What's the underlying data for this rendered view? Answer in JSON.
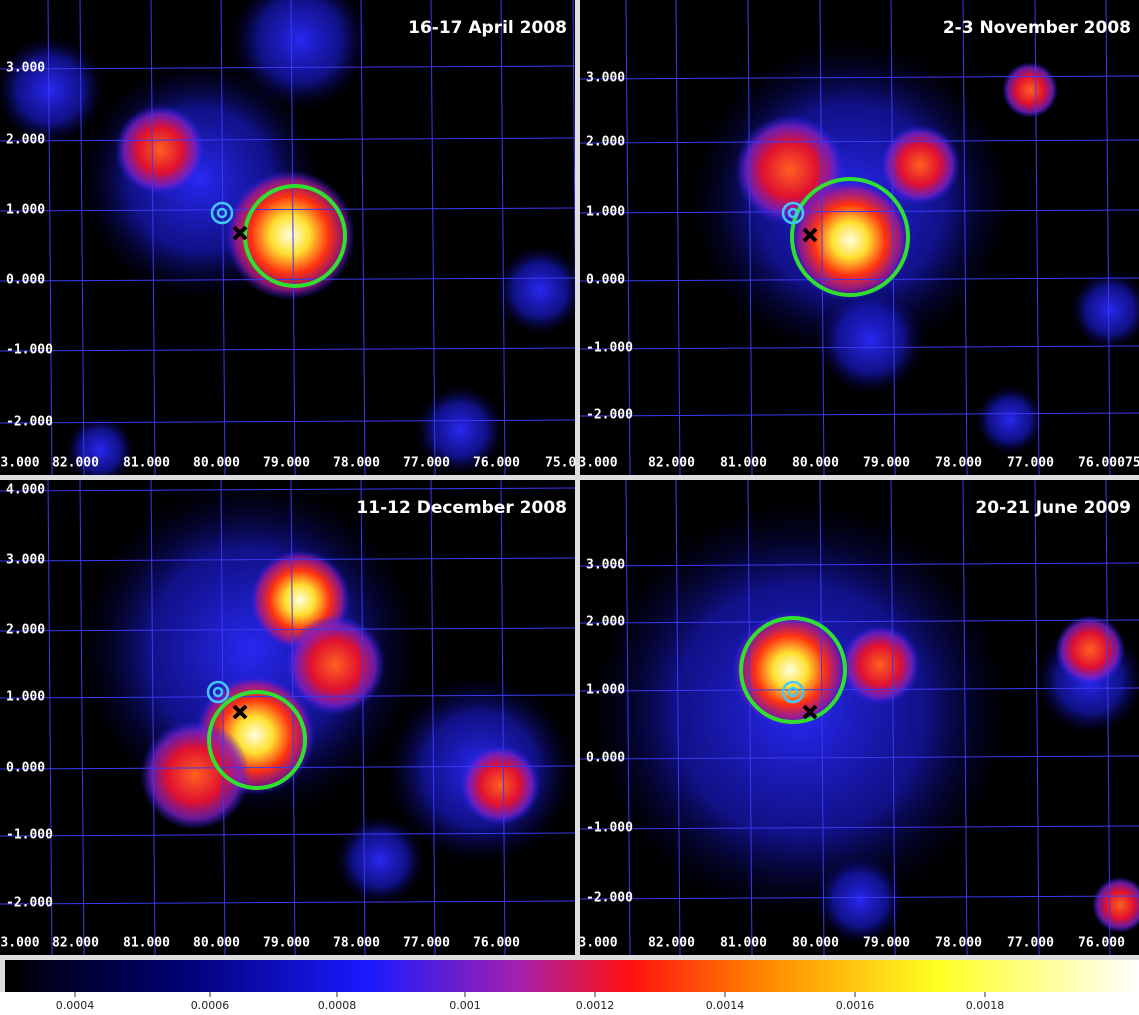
{
  "panels": [
    {
      "title": "16-17 April 2008",
      "y_labels": [
        "3.000",
        "2.000",
        "1.000",
        "0.000",
        "-1.000",
        "-2.000"
      ],
      "x_labels": [
        "3.000",
        "82.000",
        "81.000",
        "80.000",
        "79.000",
        "78.000",
        "77.000",
        "76.000",
        "75.0"
      ]
    },
    {
      "title": "2-3 November 2008",
      "y_labels": [
        "3.000",
        "2.000",
        "1.000",
        "0.000",
        "-1.000",
        "-2.000"
      ],
      "x_labels": [
        "3.000",
        "82.000",
        "81.000",
        "80.000",
        "79.000",
        "78.000",
        "77.000",
        "76.000",
        "75."
      ]
    },
    {
      "title": "11-12 December 2008",
      "y_labels": [
        "4.000",
        "3.000",
        "2.000",
        "1.000",
        "0.000",
        "-1.000",
        "-2.000"
      ],
      "x_labels": [
        "3.000",
        "82.000",
        "81.000",
        "80.000",
        "79.000",
        "78.000",
        "77.000",
        "76.000"
      ]
    },
    {
      "title": "20-21 June 2009",
      "y_labels": [
        "3.000",
        "2.000",
        "1.000",
        "0.000",
        "-1.000",
        "-2.000"
      ],
      "x_labels": [
        "3.000",
        "82.000",
        "81.000",
        "80.000",
        "79.000",
        "78.000",
        "77.000",
        "76.000"
      ]
    }
  ],
  "colorbar": {
    "labels": [
      "0.0004",
      "0.0006",
      "0.0008",
      "0.001",
      "0.0012",
      "0.0014",
      "0.0016",
      "0.0018"
    ]
  }
}
